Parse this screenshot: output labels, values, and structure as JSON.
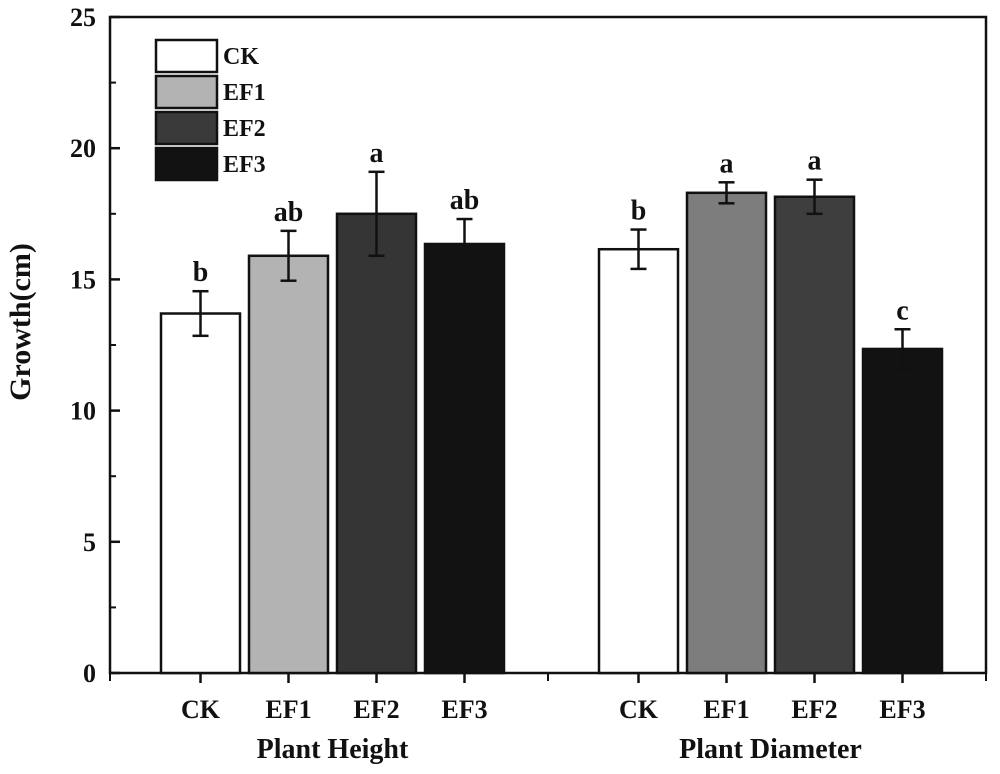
{
  "chart_data": {
    "type": "bar",
    "ylabel": "Growth(cm)",
    "ylim": [
      0,
      25
    ],
    "yticks": [
      0,
      5,
      10,
      15,
      20,
      25
    ],
    "legend_position": "top-left",
    "series": [
      {
        "name": "CK",
        "color": "#ffffff"
      },
      {
        "name": "EF1",
        "color": "#b3b3b3"
      },
      {
        "name": "EF2",
        "color": "#3a3a3a"
      },
      {
        "name": "EF3",
        "color": "#121212"
      }
    ],
    "groups": [
      {
        "label": "Plant Height",
        "bars": [
          {
            "category": "CK",
            "value": 13.7,
            "error": 0.85,
            "letter": "b",
            "color": "#ffffff"
          },
          {
            "category": "EF1",
            "value": 15.9,
            "error": 0.95,
            "letter": "ab",
            "color": "#b3b3b3"
          },
          {
            "category": "EF2",
            "value": 17.5,
            "error": 1.6,
            "letter": "a",
            "color": "#353535"
          },
          {
            "category": "EF3",
            "value": 16.35,
            "error": 0.95,
            "letter": "ab",
            "color": "#121212"
          }
        ]
      },
      {
        "label": "Plant Diameter",
        "bars": [
          {
            "category": "CK",
            "value": 16.15,
            "error": 0.75,
            "letter": "b",
            "color": "#ffffff"
          },
          {
            "category": "EF1",
            "value": 18.3,
            "error": 0.4,
            "letter": "a",
            "color": "#7d7d7d"
          },
          {
            "category": "EF2",
            "value": 18.15,
            "error": 0.65,
            "letter": "a",
            "color": "#3e3e3e"
          },
          {
            "category": "EF3",
            "value": 12.35,
            "error": 0.75,
            "letter": "c",
            "color": "#121212"
          }
        ]
      }
    ]
  }
}
